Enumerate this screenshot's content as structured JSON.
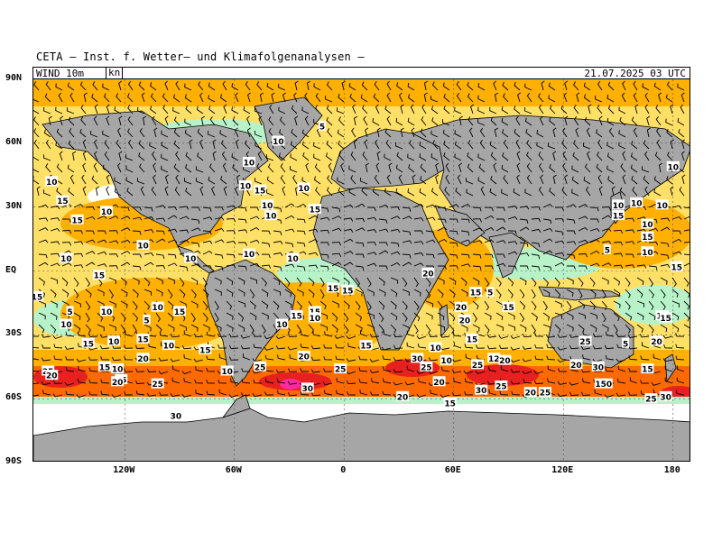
{
  "header": {
    "title": "CETA — Inst. f. Wetter— und Klimafolgenanalysen —"
  },
  "info_bar": {
    "variable": "WIND  10m",
    "unit": "kn",
    "datetime": "21.07.2025 03 UTC"
  },
  "axes": {
    "lat_labels": [
      "90N",
      "60N",
      "30N",
      "EQ",
      "30S",
      "60S",
      "90S"
    ],
    "lat_values": [
      90,
      60,
      30,
      0,
      -30,
      -60,
      -90
    ],
    "lon_labels": [
      "120W",
      "60W",
      "0",
      "60E",
      "120E",
      "180"
    ],
    "lon_values": [
      -120,
      -60,
      0,
      60,
      120,
      180
    ]
  },
  "colors": {
    "land": "#a6a6a6",
    "calm": "#ffffff",
    "light": "#b8f2c8",
    "moderate": "#ffe066",
    "fresh": "#ffb000",
    "strong": "#ff6a00",
    "gale": "#e82020",
    "storm": "#ff2aa0"
  },
  "contour_labels": [
    {
      "v": "10",
      "lon": -160,
      "lat": 42
    },
    {
      "v": "15",
      "lon": -154,
      "lat": 33
    },
    {
      "v": "15",
      "lon": -146,
      "lat": 24
    },
    {
      "v": "10",
      "lon": -130,
      "lat": 28
    },
    {
      "v": "10",
      "lon": -110,
      "lat": 12
    },
    {
      "v": "10",
      "lon": -152,
      "lat": 6
    },
    {
      "v": "10",
      "lon": -84,
      "lat": 6
    },
    {
      "v": "15",
      "lon": -134,
      "lat": -2
    },
    {
      "v": "15",
      "lon": -168,
      "lat": -12
    },
    {
      "v": "5",
      "lon": -150,
      "lat": -19
    },
    {
      "v": "10",
      "lon": -152,
      "lat": -25
    },
    {
      "v": "10",
      "lon": -130,
      "lat": -19
    },
    {
      "v": "5",
      "lon": -108,
      "lat": -23
    },
    {
      "v": "10",
      "lon": -102,
      "lat": -17
    },
    {
      "v": "15",
      "lon": -90,
      "lat": -19
    },
    {
      "v": "15",
      "lon": -110,
      "lat": -32
    },
    {
      "v": "10",
      "lon": -126,
      "lat": -33
    },
    {
      "v": "15",
      "lon": -140,
      "lat": -34
    },
    {
      "v": "10",
      "lon": -96,
      "lat": -35
    },
    {
      "v": "20",
      "lon": -110,
      "lat": -41
    },
    {
      "v": "15",
      "lon": -131,
      "lat": -45
    },
    {
      "v": "10",
      "lon": -124,
      "lat": -46
    },
    {
      "v": "15",
      "lon": -122,
      "lat": -51
    },
    {
      "v": "25",
      "lon": -162,
      "lat": -47
    },
    {
      "v": "20",
      "lon": -160,
      "lat": -49
    },
    {
      "v": "20",
      "lon": -124,
      "lat": -52
    },
    {
      "v": "25",
      "lon": -102,
      "lat": -53
    },
    {
      "v": "30",
      "lon": -92,
      "lat": -68
    },
    {
      "v": "15",
      "lon": -76,
      "lat": -37
    },
    {
      "v": "10",
      "lon": -64,
      "lat": -47
    },
    {
      "v": "25",
      "lon": -46,
      "lat": -45
    },
    {
      "v": "10",
      "lon": -34,
      "lat": -25
    },
    {
      "v": "15",
      "lon": -26,
      "lat": -21
    },
    {
      "v": "15",
      "lon": -16,
      "lat": -19
    },
    {
      "v": "10",
      "lon": -16,
      "lat": -22
    },
    {
      "v": "20",
      "lon": -22,
      "lat": -40
    },
    {
      "v": "25",
      "lon": -2,
      "lat": -46
    },
    {
      "v": "30",
      "lon": -20,
      "lat": -55
    },
    {
      "v": "15",
      "lon": -6,
      "lat": -8
    },
    {
      "v": "15",
      "lon": 2,
      "lat": -9
    },
    {
      "v": "15",
      "lon": 12,
      "lat": -35
    },
    {
      "v": "10",
      "lon": -52,
      "lat": 8
    },
    {
      "v": "10",
      "lon": -28,
      "lat": 6
    },
    {
      "v": "10",
      "lon": -52,
      "lat": 51
    },
    {
      "v": "10",
      "lon": -54,
      "lat": 40
    },
    {
      "v": "15",
      "lon": -46,
      "lat": 38
    },
    {
      "v": "10",
      "lon": -42,
      "lat": 31
    },
    {
      "v": "10",
      "lon": -40,
      "lat": 26
    },
    {
      "v": "10",
      "lon": -22,
      "lat": 39
    },
    {
      "v": "15",
      "lon": -16,
      "lat": 29
    },
    {
      "v": "10",
      "lon": -36,
      "lat": 61
    },
    {
      "v": "5",
      "lon": -12,
      "lat": 68
    },
    {
      "v": "20",
      "lon": 46,
      "lat": -1
    },
    {
      "v": "15",
      "lon": 72,
      "lat": -10
    },
    {
      "v": "5",
      "lon": 80,
      "lat": -10
    },
    {
      "v": "15",
      "lon": 90,
      "lat": -17
    },
    {
      "v": "20",
      "lon": 64,
      "lat": -17
    },
    {
      "v": "20",
      "lon": 66,
      "lat": -23
    },
    {
      "v": "10",
      "lon": 50,
      "lat": -36
    },
    {
      "v": "15",
      "lon": 70,
      "lat": -32
    },
    {
      "v": "30",
      "lon": 40,
      "lat": -41
    },
    {
      "v": "25",
      "lon": 45,
      "lat": -45
    },
    {
      "v": "10",
      "lon": 56,
      "lat": -42
    },
    {
      "v": "25",
      "lon": 73,
      "lat": -44
    },
    {
      "v": "12",
      "lon": 82,
      "lat": -41
    },
    {
      "v": "20",
      "lon": 88,
      "lat": -42
    },
    {
      "v": "20",
      "lon": 52,
      "lat": -52
    },
    {
      "v": "30",
      "lon": 75,
      "lat": -56
    },
    {
      "v": "20",
      "lon": 32,
      "lat": -59
    },
    {
      "v": "25",
      "lon": 86,
      "lat": -54
    },
    {
      "v": "20",
      "lon": 102,
      "lat": -57
    },
    {
      "v": "25",
      "lon": 110,
      "lat": -57
    },
    {
      "v": "15",
      "lon": 58,
      "lat": -62
    },
    {
      "v": "20",
      "lon": 127,
      "lat": -44
    },
    {
      "v": "30",
      "lon": 139,
      "lat": -45
    },
    {
      "v": "150",
      "lon": 142,
      "lat": -53
    },
    {
      "v": "25",
      "lon": 132,
      "lat": -33
    },
    {
      "v": "5",
      "lon": 154,
      "lat": -34
    },
    {
      "v": "15",
      "lon": 166,
      "lat": -46
    },
    {
      "v": "20",
      "lon": 171,
      "lat": -33
    },
    {
      "v": "15",
      "lon": 174,
      "lat": -21
    },
    {
      "v": "25",
      "lon": 168,
      "lat": -60
    },
    {
      "v": "30",
      "lon": 176,
      "lat": -59
    },
    {
      "v": "10",
      "lon": -178,
      "lat": -37
    },
    {
      "v": "10",
      "lon": 150,
      "lat": 31
    },
    {
      "v": "10",
      "lon": 160,
      "lat": 32
    },
    {
      "v": "10",
      "lon": 174,
      "lat": 31
    },
    {
      "v": "15",
      "lon": 150,
      "lat": 26
    },
    {
      "v": "10",
      "lon": 166,
      "lat": 22
    },
    {
      "v": "15",
      "lon": 166,
      "lat": 16
    },
    {
      "v": "5",
      "lon": 144,
      "lat": 10
    },
    {
      "v": "10",
      "lon": 166,
      "lat": 9
    },
    {
      "v": "15",
      "lon": 182,
      "lat": 2
    },
    {
      "v": "10",
      "lon": 180,
      "lat": 49
    },
    {
      "v": "15",
      "lon": 176,
      "lat": -22
    }
  ]
}
